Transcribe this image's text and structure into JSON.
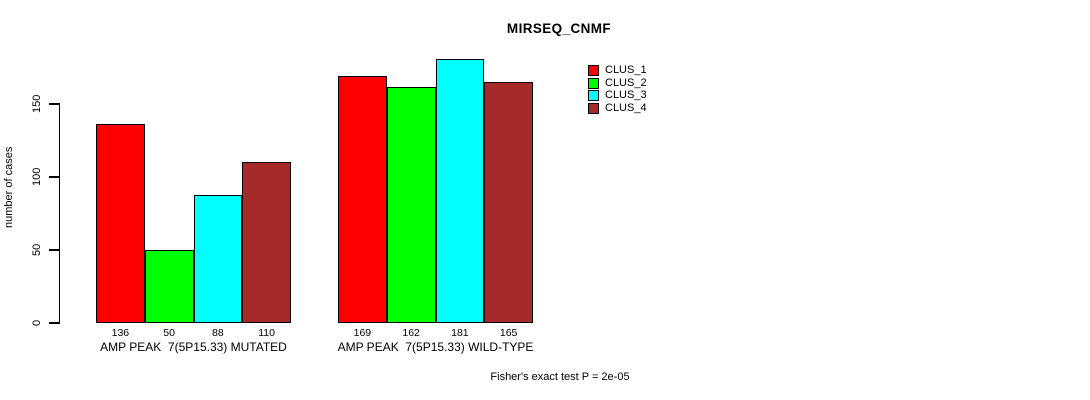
{
  "chart_data": {
    "type": "bar",
    "title": "MIRSEQ_CNMF",
    "ylabel": "number of cases",
    "yticks": [
      0,
      50,
      100,
      150
    ],
    "ylim": [
      0,
      185
    ],
    "grid": false,
    "legend_position": "right-top",
    "categories": [
      "AMP PEAK  7(5P15.33) MUTATED",
      "AMP PEAK  7(5P15.33) WILD-TYPE"
    ],
    "series": [
      {
        "name": "CLUS_1",
        "color": "#FF0000",
        "values": [
          136,
          169
        ]
      },
      {
        "name": "CLUS_2",
        "color": "#00FF00",
        "values": [
          50,
          162
        ]
      },
      {
        "name": "CLUS_3",
        "color": "#00FFFF",
        "values": [
          88,
          181
        ]
      },
      {
        "name": "CLUS_4",
        "color": "#A52A2A",
        "values": [
          110,
          165
        ]
      }
    ],
    "bar_value_labels": [
      [
        136,
        50,
        88,
        110
      ],
      [
        169,
        162,
        181,
        165
      ]
    ],
    "annotation": "Fisher's exact test P = 2e-05"
  }
}
